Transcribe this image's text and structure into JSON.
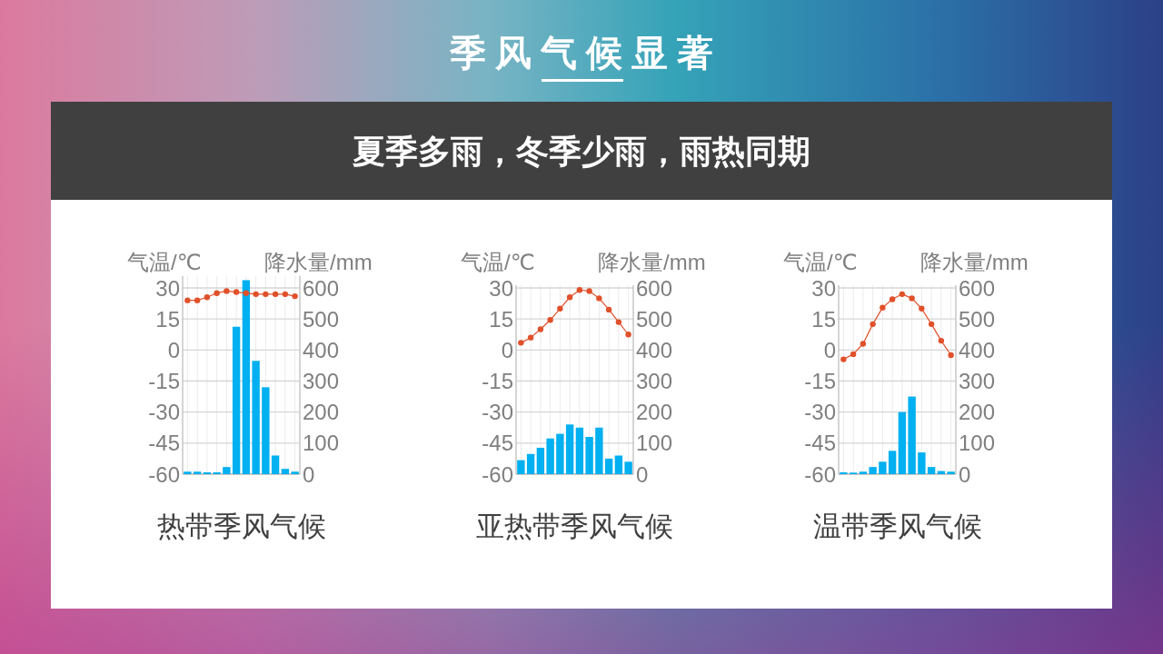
{
  "chart_data": [
    {
      "type": "other",
      "title": "季风气候显著",
      "subtitle": "夏季多雨，冬季少雨，雨热同期"
    },
    {
      "type": "bar",
      "title": "热带季风气候",
      "ylabel": "气温/℃",
      "y2label": "降水量/mm",
      "categories": [
        null,
        null,
        null,
        null,
        null,
        null,
        null,
        null,
        null,
        null,
        null,
        null
      ],
      "ylim": [
        -60,
        34.5
      ],
      "yticks": [
        -60,
        -45,
        -30,
        -15,
        0,
        15,
        30
      ],
      "y2lim": [
        0,
        630
      ],
      "y2ticks": [
        0,
        100,
        200,
        300,
        400,
        500,
        600
      ],
      "grid": true,
      "marker": "circle",
      "series": [
        {
          "type": "bar",
          "axis": "y2",
          "color": "#00b0f0",
          "values": [
            8,
            8,
            6,
            6,
            23,
            475,
            625,
            365,
            280,
            60,
            17,
            8
          ]
        },
        {
          "type": "line",
          "color": "#e0502a",
          "values": [
            24,
            24,
            25.5,
            27.5,
            28.5,
            28,
            27.5,
            27,
            27,
            27,
            27,
            26
          ]
        }
      ]
    },
    {
      "type": "bar",
      "title": "亚热带季风气候",
      "ylabel": "气温/℃",
      "y2label": "降水量/mm",
      "categories": [
        null,
        null,
        null,
        null,
        null,
        null,
        null,
        null,
        null,
        null,
        null,
        null
      ],
      "ylim": [
        -60,
        30
      ],
      "yticks": [
        -60,
        -45,
        -30,
        -15,
        0,
        15,
        30
      ],
      "y2lim": [
        0,
        600
      ],
      "y2ticks": [
        0,
        100,
        200,
        300,
        400,
        500,
        600
      ],
      "grid": true,
      "marker": "circle",
      "series": [
        {
          "type": "bar",
          "axis": "y2",
          "color": "#00b0f0",
          "values": [
            45,
            65,
            85,
            115,
            130,
            160,
            150,
            120,
            150,
            50,
            60,
            40
          ]
        },
        {
          "type": "line",
          "color": "#e0502a",
          "values": [
            3.5,
            6,
            10,
            14.5,
            20,
            25.5,
            29,
            28.5,
            25,
            19.5,
            13.5,
            7.5
          ]
        }
      ]
    },
    {
      "type": "bar",
      "title": "温带季风气候",
      "ylabel": "气温/℃",
      "y2label": "降水量/mm",
      "categories": [
        null,
        null,
        null,
        null,
        null,
        null,
        null,
        null,
        null,
        null,
        null,
        null
      ],
      "ylim": [
        -60,
        30
      ],
      "yticks": [
        -60,
        -45,
        -30,
        -15,
        0,
        15,
        30
      ],
      "y2lim": [
        0,
        600
      ],
      "y2ticks": [
        0,
        100,
        200,
        300,
        400,
        500,
        600
      ],
      "grid": true,
      "marker": "circle",
      "series": [
        {
          "type": "bar",
          "axis": "y2",
          "color": "#00b0f0",
          "values": [
            6,
            5,
            8,
            23,
            40,
            75,
            200,
            250,
            70,
            23,
            10,
            8
          ]
        },
        {
          "type": "line",
          "color": "#e0502a",
          "values": [
            -4.5,
            -2,
            3,
            12.5,
            20.5,
            24.5,
            27,
            25,
            20,
            12.5,
            4.5,
            -2.5
          ]
        }
      ]
    }
  ]
}
